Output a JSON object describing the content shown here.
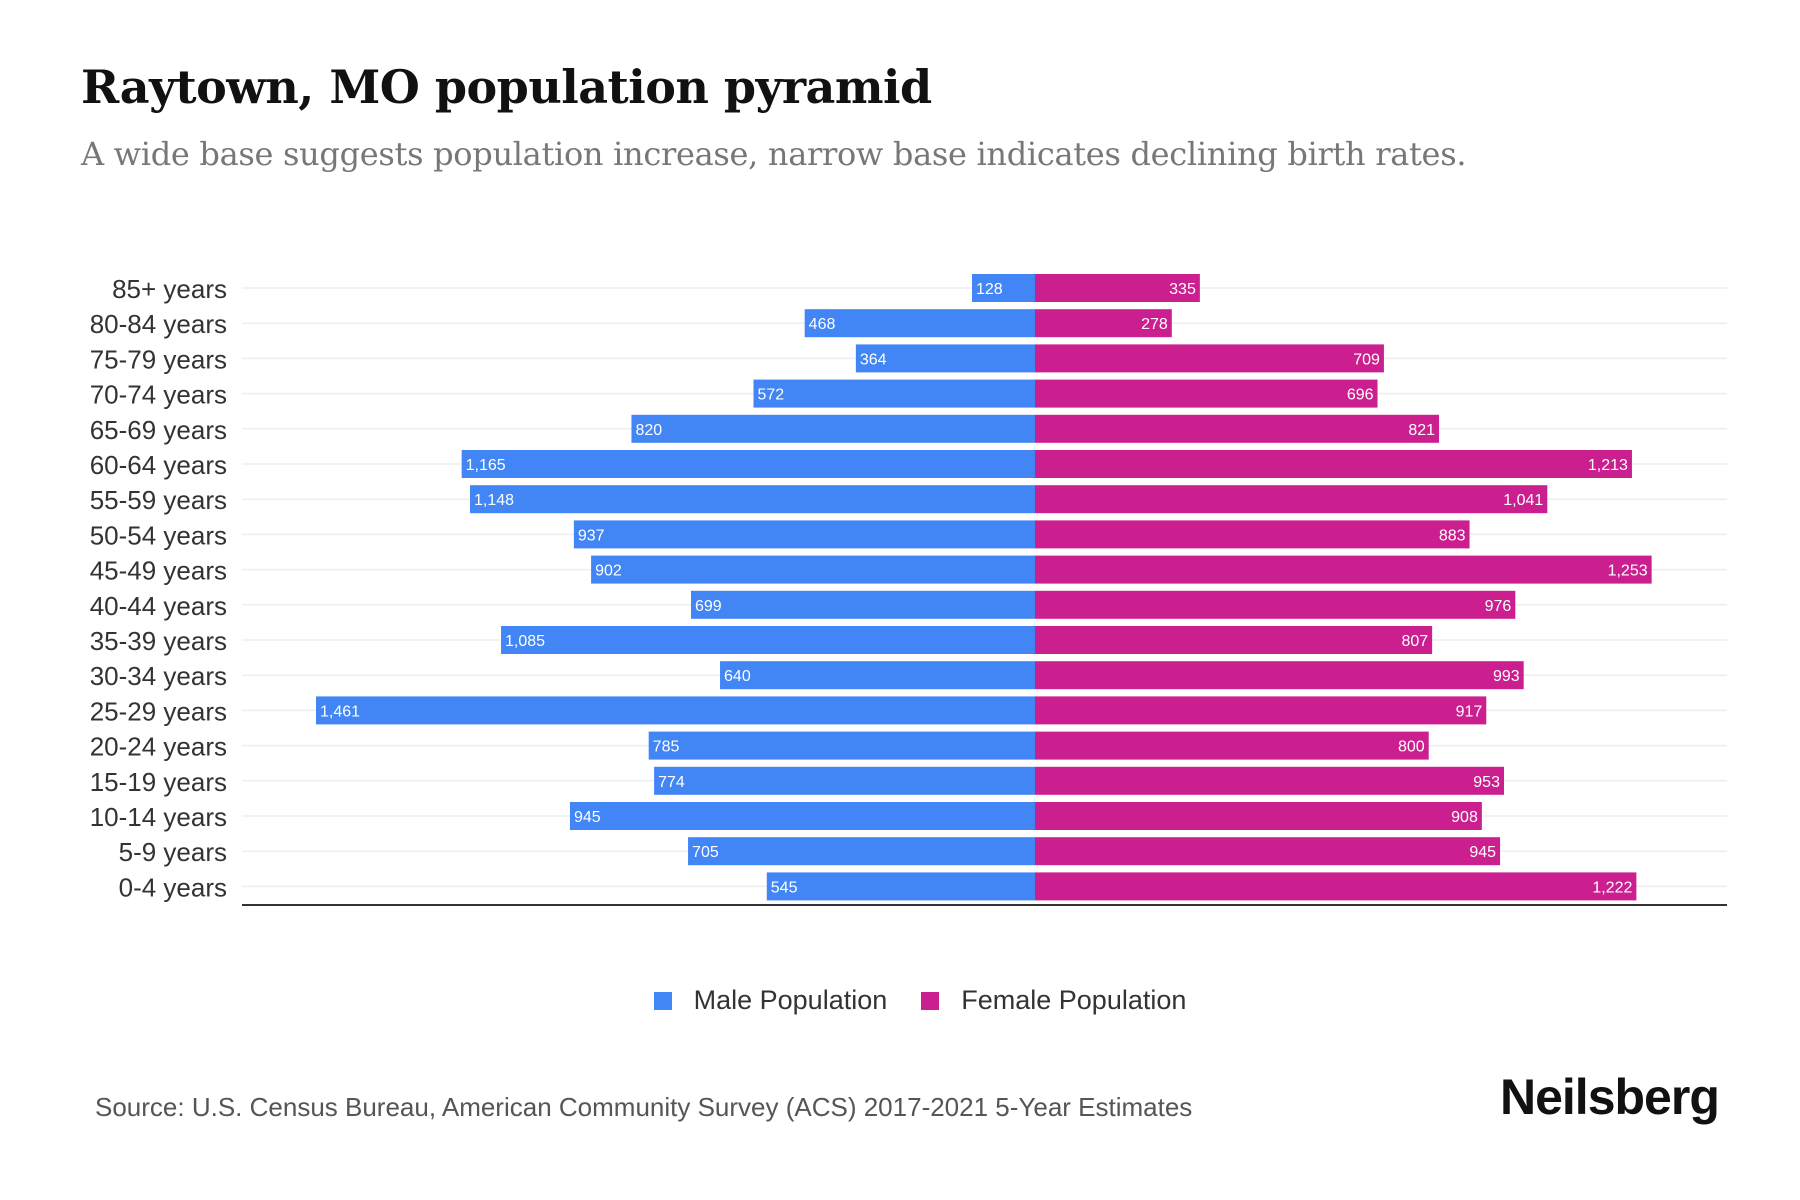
{
  "chart_data": {
    "type": "bar",
    "orientation": "horizontal-pyramid",
    "title": "Raytown, MO population pyramid",
    "subtitle": "A wide base suggests population increase, narrow base indicates declining birth rates.",
    "categories": [
      "85+ years",
      "80-84 years",
      "75-79 years",
      "70-74 years",
      "65-69 years",
      "60-64 years",
      "55-59 years",
      "50-54 years",
      "45-49 years",
      "40-44 years",
      "35-39 years",
      "30-34 years",
      "25-29 years",
      "20-24 years",
      "15-19 years",
      "10-14 years",
      "5-9 years",
      "0-4 years"
    ],
    "series": [
      {
        "name": "Male Population",
        "color": "#4285f4",
        "values": [
          128,
          468,
          364,
          572,
          820,
          1165,
          1148,
          937,
          902,
          699,
          1085,
          640,
          1461,
          785,
          774,
          945,
          705,
          545
        ]
      },
      {
        "name": "Female Population",
        "color": "#cc1f8f",
        "values": [
          335,
          278,
          709,
          696,
          821,
          1213,
          1041,
          883,
          1253,
          976,
          807,
          993,
          917,
          800,
          953,
          908,
          945,
          1222
        ]
      }
    ],
    "xlim": [
      -1461,
      1461
    ],
    "legend_position": "bottom-center",
    "grid": true
  },
  "source": "Source: U.S. Census Bureau, American Community Survey (ACS) 2017-2021 5-Year Estimates",
  "brand": "Neilsberg"
}
